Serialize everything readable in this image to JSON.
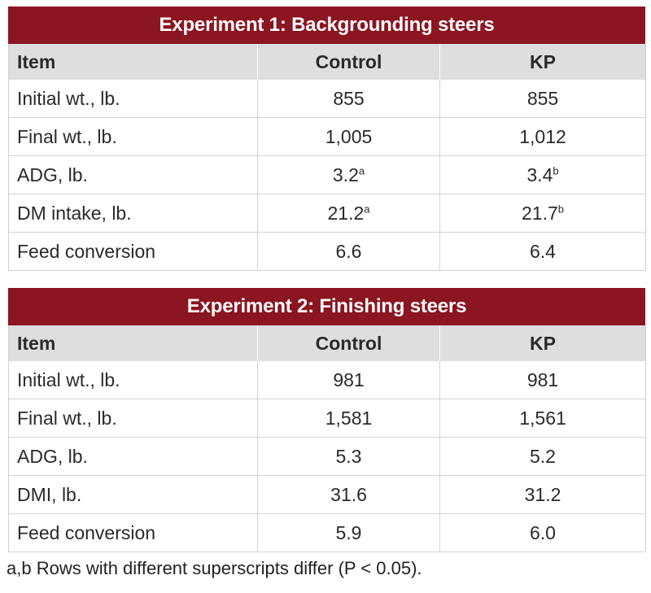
{
  "colors": {
    "title_bar": "#8b1520",
    "header_row": "#dedede",
    "title_text": "#ffffff"
  },
  "experiments": [
    {
      "title": "Experiment 1: Backgrounding steers",
      "headers": [
        "Item",
        "Control",
        "KP"
      ],
      "rows": [
        {
          "item": "Initial wt., lb.",
          "control": "855",
          "control_sup": "",
          "kp": "855",
          "kp_sup": ""
        },
        {
          "item": "Final wt., lb.",
          "control": "1,005",
          "control_sup": "",
          "kp": "1,012",
          "kp_sup": ""
        },
        {
          "item": "ADG, lb.",
          "control": "3.2",
          "control_sup": "a",
          "kp": "3.4",
          "kp_sup": "b"
        },
        {
          "item": "DM intake, lb.",
          "control": "21.2",
          "control_sup": "a",
          "kp": "21.7",
          "kp_sup": "b"
        },
        {
          "item": "Feed conversion",
          "control": "6.6",
          "control_sup": "",
          "kp": "6.4",
          "kp_sup": ""
        }
      ]
    },
    {
      "title": "Experiment 2: Finishing steers",
      "headers": [
        "Item",
        "Control",
        "KP"
      ],
      "rows": [
        {
          "item": "Initial wt., lb.",
          "control": "981",
          "control_sup": "",
          "kp": "981",
          "kp_sup": ""
        },
        {
          "item": "Final wt., lb.",
          "control": "1,581",
          "control_sup": "",
          "kp": "1,561",
          "kp_sup": ""
        },
        {
          "item": "ADG, lb.",
          "control": "5.3",
          "control_sup": "",
          "kp": "5.2",
          "kp_sup": ""
        },
        {
          "item": "DMI, lb.",
          "control": "31.6",
          "control_sup": "",
          "kp": "31.2",
          "kp_sup": ""
        },
        {
          "item": "Feed conversion",
          "control": "5.9",
          "control_sup": "",
          "kp": "6.0",
          "kp_sup": ""
        }
      ]
    }
  ],
  "footnote": "a,b Rows with different superscripts differ (P < 0.05)."
}
